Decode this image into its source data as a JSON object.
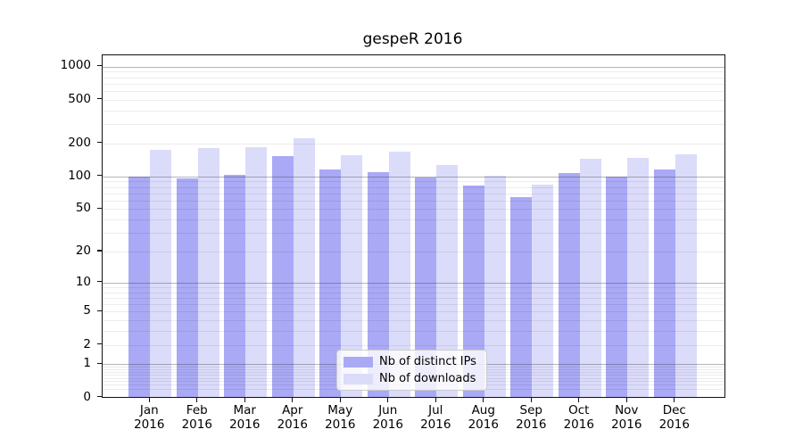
{
  "chart_data": {
    "type": "bar",
    "title": "gespeR 2016",
    "categories": [
      "Jan",
      "Feb",
      "Mar",
      "Apr",
      "May",
      "Jun",
      "Jul",
      "Aug",
      "Sep",
      "Oct",
      "Nov",
      "Dec"
    ],
    "x_tick_second_line": "2016",
    "series": [
      {
        "name": "Nb of distinct IPs",
        "color": "#a9a9f5",
        "values": [
          100,
          96,
          104,
          154,
          115,
          110,
          97,
          82,
          65,
          107,
          100,
          115
        ]
      },
      {
        "name": "Nb of downloads",
        "color": "#dbdbfa",
        "values": [
          174,
          181,
          184,
          224,
          157,
          167,
          126,
          102,
          84,
          145,
          148,
          159
        ]
      }
    ],
    "yscale": "log1p",
    "y_ticks": [
      1000,
      500,
      200,
      100,
      50,
      20,
      10,
      5,
      2,
      1,
      0
    ],
    "ylim": [
      0,
      1250
    ],
    "grid": {
      "major_values": [
        1,
        10,
        100,
        1000
      ],
      "minor_multiples": [
        2,
        3,
        4,
        5,
        6,
        7,
        8,
        9
      ],
      "minor_decades": [
        0.1,
        1,
        10,
        100
      ],
      "major_color": "#8c8c8c",
      "minor_color": "#ebebeb"
    },
    "legend_position": "lower center",
    "xlabel": "",
    "ylabel": ""
  }
}
